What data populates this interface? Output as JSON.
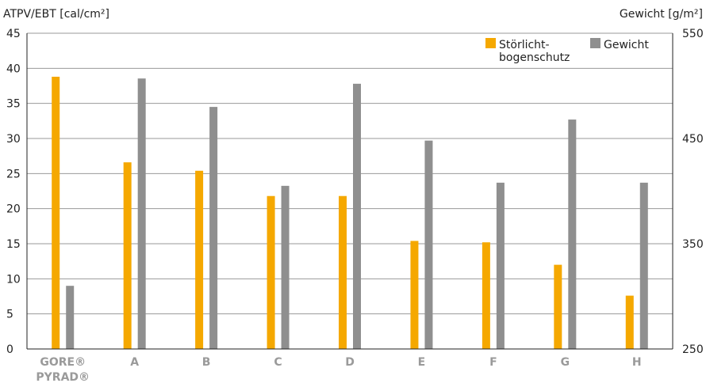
{
  "chart_data": {
    "type": "bar",
    "left_axis_label": "ATPV/EBT [cal/cm²]",
    "right_axis_label": "Gewicht [g/m²]",
    "categories": [
      [
        "GORE®",
        "PYRAD®"
      ],
      [
        "A"
      ],
      [
        "B"
      ],
      [
        "C"
      ],
      [
        "D"
      ],
      [
        "E"
      ],
      [
        "F"
      ],
      [
        "G"
      ],
      [
        "H"
      ]
    ],
    "highlight_category_index": 0,
    "y_left": {
      "min": 0,
      "max": 45,
      "ticks": [
        0,
        5,
        10,
        15,
        20,
        25,
        30,
        35,
        40,
        45
      ]
    },
    "y_right": {
      "min": 250,
      "max": 550,
      "ticks": [
        250,
        350,
        450,
        550
      ]
    },
    "series": [
      {
        "name": "Störlicht-bogenschutz",
        "legend_lines": [
          "Störlicht-",
          "bogenschutz"
        ],
        "axis": "left",
        "color": "#f5a800",
        "values": [
          38.8,
          26.6,
          25.4,
          21.8,
          21.8,
          15.4,
          15.2,
          12.0,
          7.6
        ]
      },
      {
        "name": "Gewicht",
        "legend_lines": [
          "Gewicht"
        ],
        "axis": "right",
        "color": "#8f8f8f",
        "values": [
          310,
          507,
          480,
          405,
          502,
          448,
          408,
          468,
          408
        ]
      }
    ],
    "colors": {
      "highlight_label": "#f5a800",
      "category_label": "#9a9a9a",
      "grid": "#9a9a9a",
      "axis": "#222222"
    },
    "grid": true,
    "legend_position": "top-right"
  }
}
